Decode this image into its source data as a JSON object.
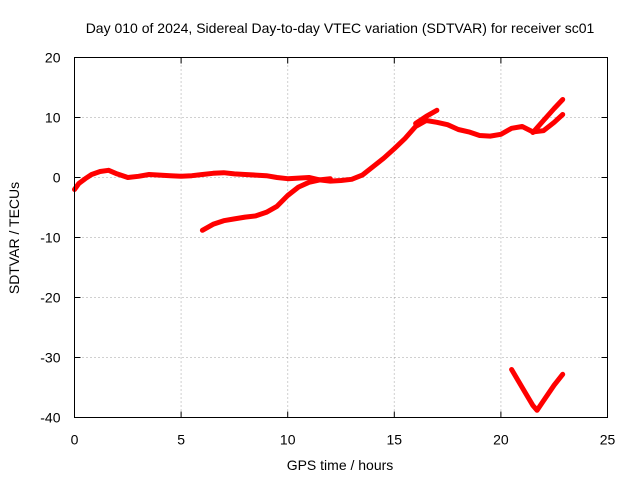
{
  "chart_data": {
    "type": "line",
    "title": "Day 010 of 2024, Sidereal Day-to-day VTEC variation (SDTVAR) for receiver sc01",
    "xlabel": "GPS time / hours",
    "ylabel": "SDTVAR / TECUs",
    "xlim": [
      0,
      25
    ],
    "ylim": [
      -40,
      20
    ],
    "xticks": [
      0,
      5,
      10,
      15,
      20,
      25
    ],
    "yticks": [
      -40,
      -30,
      -20,
      -10,
      0,
      10,
      20
    ],
    "xtick_labels": [
      "0",
      "5",
      "10",
      "15",
      "20",
      "25"
    ],
    "ytick_labels": [
      "-40",
      "-30",
      "-20",
      "-10",
      "0",
      "10",
      "20"
    ],
    "grid": true,
    "color": "#ff0000",
    "series": [
      {
        "name": "sdtvar-main",
        "x": [
          0.0,
          0.2,
          0.5,
          0.8,
          1.2,
          1.6,
          2.0,
          2.5,
          3.0,
          3.5,
          4.0,
          4.5,
          5.0,
          5.5,
          6.0,
          6.5,
          7.0,
          7.5,
          8.0,
          8.5,
          9.0,
          9.5,
          10.0,
          10.5,
          11.0,
          11.5,
          12.0,
          12.5,
          13.0,
          13.5,
          14.0,
          14.5,
          15.0,
          15.5,
          16.0,
          16.5,
          17.0,
          17.5,
          18.0,
          18.5,
          19.0,
          19.5,
          20.0,
          20.5,
          21.0,
          21.5,
          22.0,
          22.5,
          22.9
        ],
        "y": [
          -2.0,
          -1.0,
          -0.2,
          0.5,
          1.0,
          1.2,
          0.6,
          0.0,
          0.2,
          0.5,
          0.4,
          0.3,
          0.2,
          0.3,
          0.5,
          0.7,
          0.8,
          0.6,
          0.5,
          0.4,
          0.3,
          0.0,
          -0.2,
          -0.1,
          0.0,
          -0.4,
          -0.6,
          -0.5,
          -0.3,
          0.4,
          1.8,
          3.2,
          4.8,
          6.5,
          8.5,
          9.5,
          9.2,
          8.8,
          8.0,
          7.6,
          7.0,
          6.9,
          7.2,
          8.2,
          8.5,
          7.6,
          7.8,
          9.2,
          10.5
        ]
      },
      {
        "name": "sdtvar-low-branch",
        "x": [
          6.0,
          6.5,
          7.0,
          7.5,
          8.0,
          8.5,
          9.0,
          9.5,
          10.0,
          10.5,
          11.0,
          11.5,
          12.0
        ],
        "y": [
          -8.8,
          -7.8,
          -7.2,
          -6.9,
          -6.6,
          -6.4,
          -5.8,
          -4.8,
          -3.0,
          -1.6,
          -0.8,
          -0.4,
          -0.2
        ]
      },
      {
        "name": "sdtvar-upper-branch",
        "x": [
          16.0,
          16.5,
          17.0
        ],
        "y": [
          9.0,
          10.2,
          11.2
        ]
      },
      {
        "name": "sdtvar-upper-tail",
        "x": [
          21.5,
          22.0,
          22.5,
          22.9
        ],
        "y": [
          7.5,
          9.5,
          11.5,
          13.0
        ]
      },
      {
        "name": "sdtvar-v-shape",
        "x": [
          20.5,
          21.0,
          21.5,
          21.7,
          22.0,
          22.5,
          22.9
        ],
        "y": [
          -32.0,
          -35.0,
          -38.0,
          -38.8,
          -37.2,
          -34.6,
          -32.8
        ]
      }
    ]
  }
}
